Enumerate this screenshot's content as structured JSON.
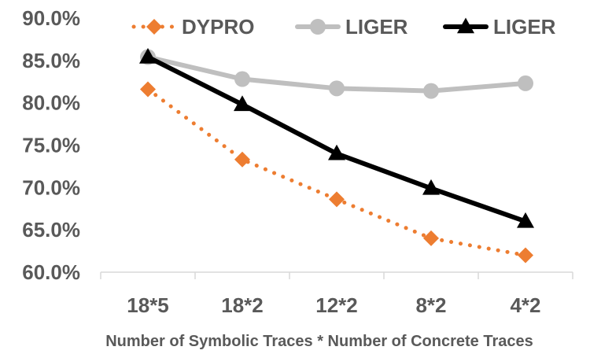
{
  "chart_data": {
    "type": "line",
    "title": "",
    "xlabel": "Number of Symbolic Traces * Number of Concrete Traces",
    "ylabel": "",
    "categories": [
      "18*5",
      "18*2",
      "12*2",
      "8*2",
      "4*2"
    ],
    "ylim": [
      60,
      90
    ],
    "yticks": [
      60,
      65,
      70,
      75,
      80,
      85,
      90
    ],
    "ytick_labels": [
      "60.0%",
      "65.0%",
      "70.0%",
      "75.0%",
      "80.0%",
      "85.0%",
      "90.0%"
    ],
    "grid": false,
    "legend_position": "top",
    "series": [
      {
        "name": "DYPRO",
        "values": [
          81.6,
          73.3,
          68.6,
          64.0,
          62.0
        ],
        "color": "#ED7D31",
        "line_style": "dotted",
        "marker": "diamond"
      },
      {
        "name": "LIGER",
        "values": [
          85.4,
          82.8,
          81.7,
          81.4,
          82.3
        ],
        "color": "#BFBFBF",
        "line_style": "solid",
        "marker": "circle"
      },
      {
        "name": "LIGER",
        "values": [
          85.4,
          79.8,
          74.0,
          69.9,
          66.0
        ],
        "color": "#000000",
        "line_style": "solid",
        "marker": "triangle"
      }
    ]
  }
}
